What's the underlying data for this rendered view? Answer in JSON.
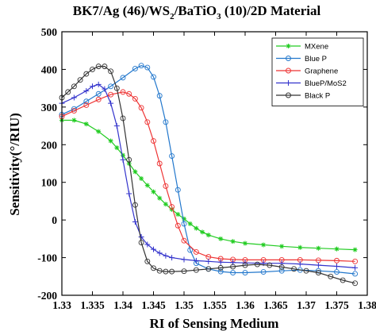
{
  "chart_data": {
    "type": "line",
    "title": {
      "pre": "BK7/Ag (46)/WS",
      "sub1": "2",
      "mid": "/BaTiO",
      "sub2": "3",
      "post": " (10)/2D Material"
    },
    "xlabel": "RI of Sensing Medium",
    "ylabel": "Sensitivity(°/RIU)",
    "xlim": [
      1.33,
      1.38
    ],
    "ylim": [
      -200,
      500
    ],
    "xticks": [
      1.33,
      1.335,
      1.34,
      1.345,
      1.35,
      1.355,
      1.36,
      1.365,
      1.37,
      1.375,
      1.38
    ],
    "xtick_labels": [
      "1.33",
      "1.335",
      "1.34",
      "1.345",
      "1.35",
      "1.355",
      "1.36",
      "1.365",
      "1.37",
      "1.375",
      "1.38"
    ],
    "yticks": [
      -200,
      -100,
      0,
      100,
      200,
      300,
      400,
      500
    ],
    "ytick_labels": [
      "-200",
      "-100",
      "0",
      "100",
      "200",
      "300",
      "400",
      "500"
    ],
    "grid": false,
    "legend_position": "top-right",
    "series": [
      {
        "name": "MXene",
        "color": "#22cc22",
        "marker": "star",
        "x": [
          1.33,
          1.332,
          1.334,
          1.336,
          1.338,
          1.339,
          1.34,
          1.341,
          1.342,
          1.343,
          1.344,
          1.345,
          1.346,
          1.347,
          1.348,
          1.349,
          1.35,
          1.351,
          1.352,
          1.353,
          1.354,
          1.356,
          1.358,
          1.36,
          1.363,
          1.366,
          1.369,
          1.372,
          1.375,
          1.378
        ],
        "y": [
          265,
          265,
          255,
          235,
          210,
          192,
          172,
          150,
          128,
          110,
          92,
          75,
          58,
          42,
          28,
          15,
          3,
          -10,
          -22,
          -32,
          -40,
          -50,
          -57,
          -62,
          -66,
          -70,
          -73,
          -75,
          -77,
          -79
        ]
      },
      {
        "name": "Blue P",
        "color": "#2277cc",
        "marker": "circle",
        "x": [
          1.33,
          1.332,
          1.334,
          1.336,
          1.338,
          1.34,
          1.342,
          1.343,
          1.344,
          1.345,
          1.346,
          1.347,
          1.348,
          1.349,
          1.35,
          1.351,
          1.352,
          1.354,
          1.356,
          1.358,
          1.36,
          1.363,
          1.366,
          1.369,
          1.372,
          1.375,
          1.378
        ],
        "y": [
          280,
          295,
          315,
          335,
          355,
          378,
          402,
          410,
          405,
          380,
          330,
          260,
          170,
          80,
          -10,
          -80,
          -115,
          -130,
          -137,
          -140,
          -140,
          -138,
          -135,
          -133,
          -135,
          -138,
          -143
        ]
      },
      {
        "name": "Graphene",
        "color": "#ee3333",
        "marker": "circle",
        "x": [
          1.33,
          1.332,
          1.334,
          1.336,
          1.338,
          1.34,
          1.341,
          1.342,
          1.343,
          1.344,
          1.345,
          1.346,
          1.347,
          1.348,
          1.349,
          1.35,
          1.352,
          1.354,
          1.356,
          1.358,
          1.36,
          1.363,
          1.366,
          1.369,
          1.372,
          1.375,
          1.378
        ],
        "y": [
          275,
          290,
          305,
          320,
          333,
          340,
          335,
          322,
          298,
          260,
          210,
          150,
          90,
          35,
          -15,
          -55,
          -85,
          -98,
          -103,
          -105,
          -106,
          -106,
          -106,
          -106,
          -107,
          -108,
          -110
        ]
      },
      {
        "name": "BlueP/MoS2",
        "color": "#3333cc",
        "marker": "plus",
        "x": [
          1.33,
          1.332,
          1.334,
          1.335,
          1.336,
          1.337,
          1.338,
          1.339,
          1.34,
          1.341,
          1.342,
          1.343,
          1.344,
          1.345,
          1.346,
          1.347,
          1.348,
          1.35,
          1.352,
          1.354,
          1.356,
          1.358,
          1.36,
          1.363,
          1.366,
          1.369,
          1.372,
          1.375,
          1.378
        ],
        "y": [
          310,
          325,
          343,
          355,
          360,
          348,
          310,
          250,
          160,
          70,
          -5,
          -45,
          -65,
          -78,
          -88,
          -95,
          -100,
          -105,
          -108,
          -110,
          -112,
          -113,
          -114,
          -115,
          -115,
          -117,
          -120,
          -123,
          -127
        ]
      },
      {
        "name": "Black P",
        "color": "#333333",
        "marker": "circle",
        "x": [
          1.33,
          1.331,
          1.332,
          1.333,
          1.334,
          1.335,
          1.336,
          1.337,
          1.338,
          1.339,
          1.34,
          1.341,
          1.342,
          1.343,
          1.344,
          1.345,
          1.346,
          1.347,
          1.348,
          1.35,
          1.352,
          1.354,
          1.356,
          1.358,
          1.36,
          1.362,
          1.364,
          1.366,
          1.368,
          1.37,
          1.372,
          1.374,
          1.376,
          1.378
        ],
        "y": [
          325,
          340,
          355,
          372,
          388,
          400,
          408,
          408,
          395,
          350,
          270,
          160,
          40,
          -60,
          -110,
          -128,
          -135,
          -137,
          -137,
          -136,
          -133,
          -130,
          -127,
          -124,
          -120,
          -118,
          -120,
          -125,
          -130,
          -135,
          -140,
          -150,
          -160,
          -168
        ]
      }
    ]
  }
}
